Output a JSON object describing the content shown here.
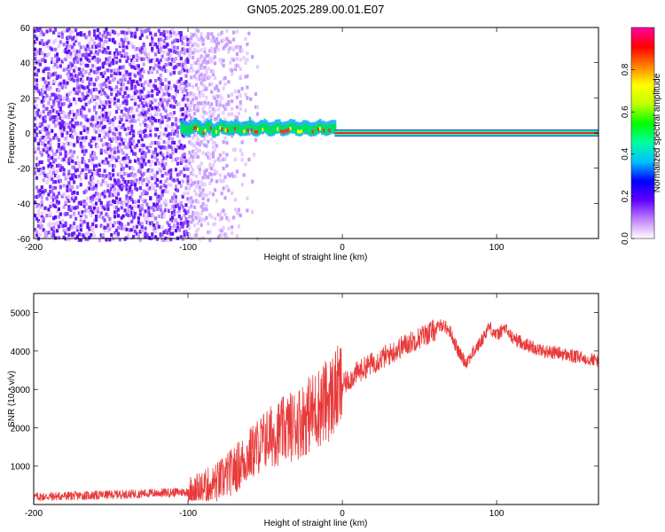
{
  "title": "GN05.2025.289.00.01.E07",
  "chart_data": [
    {
      "type": "heatmap",
      "xlabel": "Height of straight line (km)",
      "ylabel": "Frequency (Hz)",
      "xlim": [
        -200,
        166
      ],
      "ylim": [
        -60,
        60
      ],
      "x_ticks": [
        -200,
        -100,
        0,
        100
      ],
      "y_ticks": [
        -60,
        -40,
        -20,
        0,
        20,
        40,
        60
      ],
      "colorbar": {
        "label": "Normalized spectral amplitude",
        "range": [
          0,
          1
        ],
        "ticks": [
          "0.0",
          "0.2",
          "0.4",
          "0.6",
          "0.8"
        ],
        "tick_values": [
          0.0,
          0.2,
          0.4,
          0.6,
          0.8
        ],
        "colors": [
          "#ffffff",
          "#c080ff",
          "#6000ff",
          "#0000ff",
          "#00c0ff",
          "#00ffa0",
          "#00ff00",
          "#c0ff00",
          "#ffff00",
          "#ff8000",
          "#ff0000",
          "#ff00a0"
        ]
      },
      "features": {
        "noise_region_x": [
          -200,
          -100
        ],
        "fading_noise_x": [
          -100,
          -55
        ],
        "signal_band_hz": 0,
        "signal_start_x": -105,
        "coherent_start_x": -5
      }
    },
    {
      "type": "line",
      "xlabel": "Height of straight line (km)",
      "ylabel": "SNR (10 * v/v)",
      "xlim": [
        -200,
        166
      ],
      "ylim": [
        0,
        5500
      ],
      "x_ticks": [
        -200,
        -100,
        0,
        100
      ],
      "y_ticks": [
        1000,
        2000,
        3000,
        4000,
        5000
      ],
      "color": "#e83a3a",
      "series": [
        {
          "name": "SNR",
          "x": [
            -200,
            -180,
            -160,
            -140,
            -120,
            -100,
            -90,
            -80,
            -70,
            -60,
            -50,
            -40,
            -30,
            -20,
            -10,
            0,
            10,
            20,
            30,
            40,
            50,
            60,
            65,
            70,
            75,
            80,
            90,
            95,
            100,
            105,
            110,
            120,
            130,
            140,
            150,
            160,
            166
          ],
          "values": [
            200,
            220,
            240,
            270,
            300,
            330,
            420,
            600,
            900,
            1300,
            1700,
            1900,
            2100,
            2400,
            2700,
            3100,
            3450,
            3700,
            3900,
            4150,
            4350,
            4550,
            4700,
            4500,
            4000,
            3700,
            4250,
            4650,
            4400,
            4600,
            4350,
            4150,
            4000,
            3950,
            3850,
            3800,
            3750
          ]
        }
      ]
    }
  ]
}
